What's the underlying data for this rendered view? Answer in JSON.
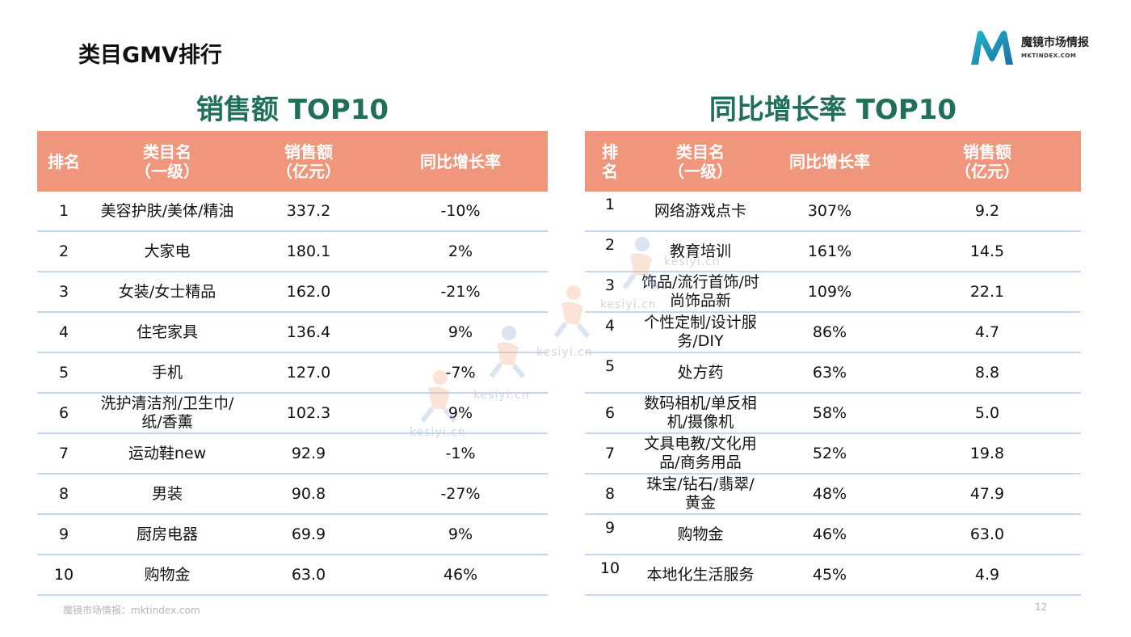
{
  "page_title": "类目GMV排行",
  "logo": {
    "name": "魔镜市场情报",
    "url": "MKTINDEX.COM"
  },
  "left": {
    "title": "销售额 TOP10",
    "headers": [
      "排名",
      "类目名\n（一级）",
      "销售额\n（亿元）",
      "同比增长率"
    ],
    "rows": [
      {
        "rank": "1",
        "category": "美容护肤/美体/精油",
        "sales": "337.2",
        "growth": "-10%"
      },
      {
        "rank": "2",
        "category": "大家电",
        "sales": "180.1",
        "growth": "2%"
      },
      {
        "rank": "3",
        "category": "女装/女士精品",
        "sales": "162.0",
        "growth": "-21%"
      },
      {
        "rank": "4",
        "category": "住宅家具",
        "sales": "136.4",
        "growth": "9%"
      },
      {
        "rank": "5",
        "category": "手机",
        "sales": "127.0",
        "growth": "-7%"
      },
      {
        "rank": "6",
        "category": "洗护清洁剂/卫生巾/纸/香薰",
        "sales": "102.3",
        "growth": "9%"
      },
      {
        "rank": "7",
        "category": "运动鞋new",
        "sales": "92.9",
        "growth": "-1%"
      },
      {
        "rank": "8",
        "category": "男装",
        "sales": "90.8",
        "growth": "-27%"
      },
      {
        "rank": "9",
        "category": "厨房电器",
        "sales": "69.9",
        "growth": "9%"
      },
      {
        "rank": "10",
        "category": "购物金",
        "sales": "63.0",
        "growth": "46%"
      }
    ]
  },
  "right": {
    "title": "同比增长率 TOP10",
    "headers": [
      "排\n名",
      "类目名\n（一级）",
      "同比增长率",
      "销售额\n（亿元）"
    ],
    "rows": [
      {
        "rank": "1",
        "category": "网络游戏点卡",
        "growth": "307%",
        "sales": "9.2"
      },
      {
        "rank": "2",
        "category": "教育培训",
        "growth": "161%",
        "sales": "14.5"
      },
      {
        "rank": "3",
        "category": "饰品/流行首饰/时尚饰品新",
        "growth": "109%",
        "sales": "22.1"
      },
      {
        "rank": "4",
        "category": "个性定制/设计服务/DIY",
        "growth": "86%",
        "sales": "4.7"
      },
      {
        "rank": "5",
        "category": "处方药",
        "growth": "63%",
        "sales": "8.8"
      },
      {
        "rank": "6",
        "category": "数码相机/单反相机/摄像机",
        "growth": "58%",
        "sales": "5.0"
      },
      {
        "rank": "7",
        "category": "文具电教/文化用品/商务用品",
        "growth": "52%",
        "sales": "19.8"
      },
      {
        "rank": "8",
        "category": "珠宝/钻石/翡翠/黄金",
        "growth": "48%",
        "sales": "47.9"
      },
      {
        "rank": "9",
        "category": "购物金",
        "growth": "46%",
        "sales": "63.0"
      },
      {
        "rank": "10",
        "category": "本地化生活服务",
        "growth": "45%",
        "sales": "4.9"
      }
    ]
  },
  "watermark": "kesiyi.cn",
  "footer": {
    "source": "魔镜市场情报：mktindex.com",
    "page_number": "12"
  }
}
